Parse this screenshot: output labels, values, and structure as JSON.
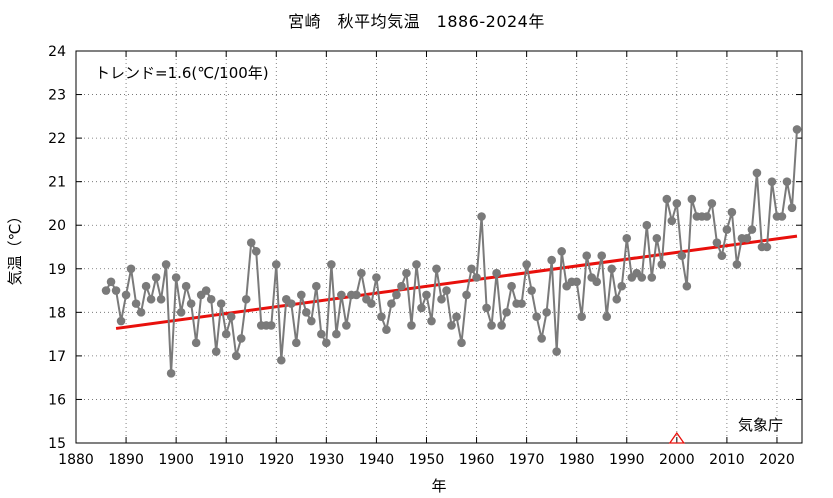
{
  "chart_data": {
    "type": "line",
    "title": "宮崎　秋平均気温　1886-2024年",
    "xlabel": "年",
    "ylabel": "気温（℃）",
    "xlim": [
      1880,
      2025
    ],
    "ylim": [
      15,
      24
    ],
    "x_ticks": [
      "1880",
      "1890",
      "1900",
      "1910",
      "1920",
      "1930",
      "1940",
      "1950",
      "1960",
      "1970",
      "1980",
      "1990",
      "2000",
      "2010",
      "2020"
    ],
    "y_ticks": [
      "15",
      "16",
      "17",
      "18",
      "19",
      "20",
      "21",
      "22",
      "23",
      "24"
    ],
    "grid": true,
    "series": [
      {
        "color": "#7a7a7a",
        "x": [
          1886,
          1887,
          1888,
          1889,
          1890,
          1891,
          1892,
          1893,
          1894,
          1895,
          1896,
          1897,
          1898,
          1899,
          1900,
          1901,
          1902,
          1903,
          1904,
          1905,
          1906,
          1907,
          1908,
          1909,
          1910,
          1911,
          1912,
          1913,
          1914,
          1915,
          1916,
          1917,
          1918,
          1919,
          1920,
          1921,
          1922,
          1923,
          1924,
          1925,
          1926,
          1927,
          1928,
          1929,
          1930,
          1931,
          1932,
          1933,
          1934,
          1935,
          1936,
          1937,
          1938,
          1939,
          1940,
          1941,
          1942,
          1943,
          1944,
          1945,
          1946,
          1947,
          1948,
          1949,
          1950,
          1951,
          1952,
          1953,
          1954,
          1955,
          1956,
          1957,
          1958,
          1959,
          1960,
          1961,
          1962,
          1963,
          1964,
          1965,
          1966,
          1967,
          1968,
          1969,
          1970,
          1971,
          1972,
          1973,
          1974,
          1975,
          1976,
          1977,
          1978,
          1979,
          1980,
          1981,
          1982,
          1983,
          1984,
          1985,
          1986,
          1987,
          1988,
          1989,
          1990,
          1991,
          1992,
          1993,
          1994,
          1995,
          1996,
          1997,
          1998,
          1999,
          2000,
          2001,
          2002,
          2003,
          2004,
          2005,
          2006,
          2007,
          2008,
          2009,
          2010,
          2011,
          2012,
          2013,
          2014,
          2015,
          2016,
          2017,
          2018,
          2019,
          2020,
          2021,
          2022,
          2023,
          2024
        ],
        "y": [
          18.5,
          18.7,
          18.5,
          17.8,
          18.4,
          19.0,
          18.2,
          18.0,
          18.6,
          18.3,
          18.8,
          18.3,
          19.1,
          16.6,
          18.8,
          18.0,
          18.6,
          18.2,
          17.3,
          18.4,
          18.5,
          18.3,
          17.1,
          18.2,
          17.5,
          17.9,
          17.0,
          17.4,
          18.3,
          19.6,
          19.4,
          17.7,
          17.7,
          17.7,
          19.1,
          16.9,
          18.3,
          18.2,
          17.3,
          18.4,
          18.0,
          17.8,
          18.6,
          17.5,
          17.3,
          19.1,
          17.5,
          18.4,
          17.7,
          18.4,
          18.4,
          18.9,
          18.3,
          18.2,
          18.8,
          17.9,
          17.6,
          18.2,
          18.4,
          18.6,
          18.9,
          17.7,
          19.1,
          18.1,
          18.4,
          17.8,
          19.0,
          18.3,
          18.5,
          17.7,
          17.9,
          17.3,
          18.4,
          19.0,
          18.8,
          20.2,
          18.1,
          17.7,
          18.9,
          17.7,
          18.0,
          18.6,
          18.2,
          18.2,
          19.1,
          18.5,
          17.9,
          17.4,
          18.0,
          19.2,
          17.1,
          19.4,
          18.6,
          18.7,
          18.7,
          17.9,
          19.3,
          18.8,
          18.7,
          19.3,
          17.9,
          19.0,
          18.3,
          18.6,
          19.7,
          18.8,
          18.9,
          18.8,
          20.0,
          18.8,
          19.7,
          19.1,
          20.6,
          20.1,
          20.5,
          19.3,
          18.6,
          20.6,
          20.2,
          20.2,
          20.2,
          20.5,
          19.6,
          19.3,
          19.9,
          20.3,
          19.1,
          19.7,
          19.7,
          19.9,
          21.2,
          19.5,
          19.5,
          21.0,
          20.2,
          20.2,
          21.0,
          20.4,
          22.2
        ]
      }
    ],
    "trend": {
      "color": "#e8100c",
      "x": [
        1888,
        2024
      ],
      "y": [
        17.63,
        19.75
      ]
    },
    "marker": {
      "x": 2000,
      "color": "#e8100c"
    },
    "annotation": "トレンド=1.6(℃/100年)",
    "credit": "気象庁"
  }
}
